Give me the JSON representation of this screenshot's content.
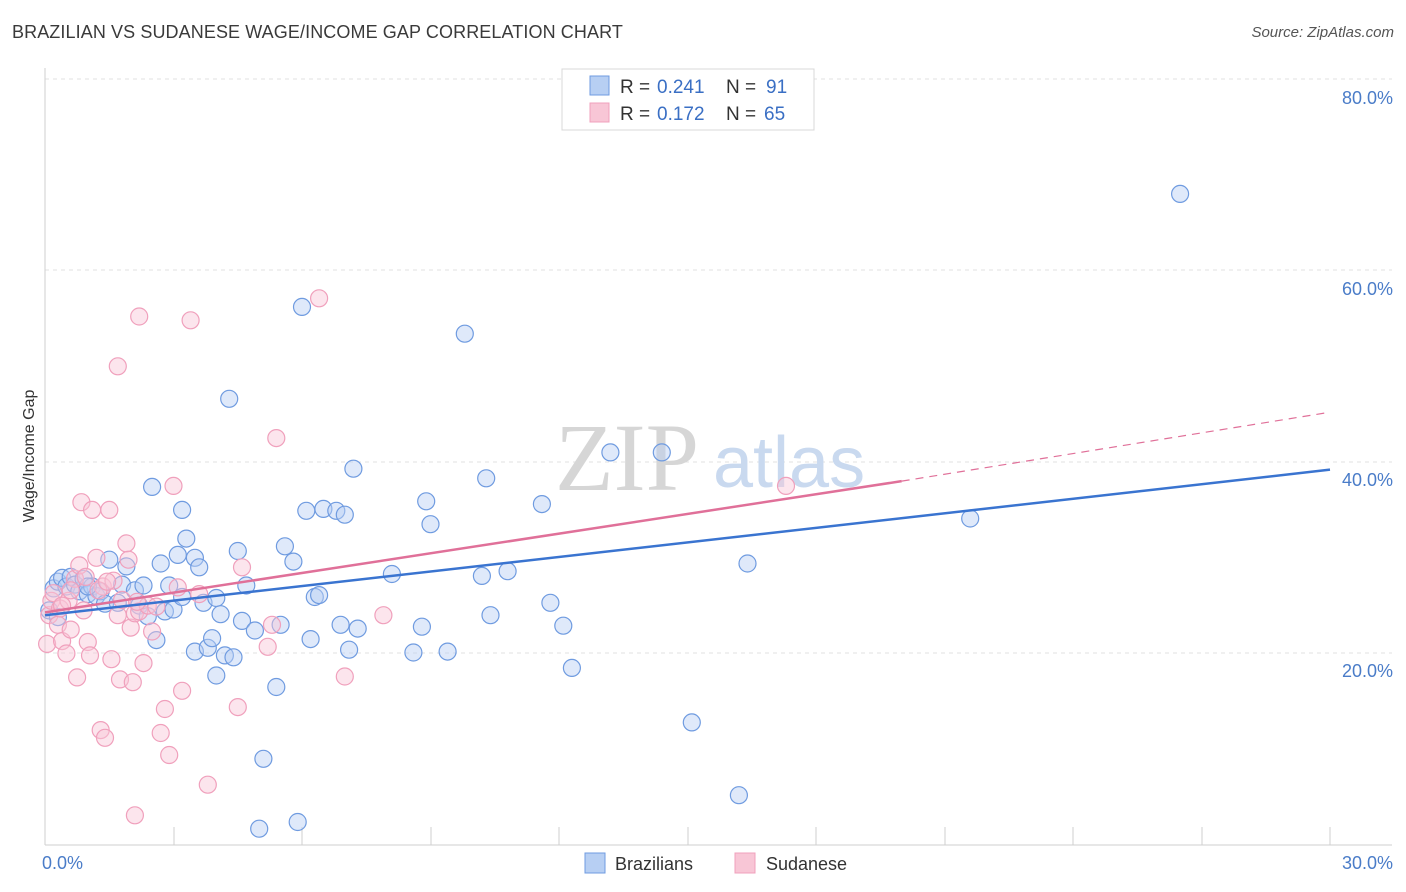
{
  "header": {
    "title": "BRAZILIAN VS SUDANESE WAGE/INCOME GAP CORRELATION CHART",
    "source": "Source: ZipAtlas.com"
  },
  "watermark": {
    "zip": "ZIP",
    "atlas": "atlas"
  },
  "legend": {
    "rows": [
      {
        "r_label": "R =",
        "r_value": "0.241",
        "n_label": "N =",
        "n_value": "91"
      },
      {
        "r_label": "R =",
        "r_value": "0.172",
        "n_label": "N =",
        "n_value": "65"
      }
    ]
  },
  "bottom_legend": {
    "series1": "Brazilians",
    "series2": "Sudanese"
  },
  "chart_data": {
    "type": "scatter",
    "title": "BRAZILIAN VS SUDANESE WAGE/INCOME GAP CORRELATION CHART",
    "xlabel": "",
    "ylabel": "Wage/Income Gap",
    "xlim": [
      0,
      30
    ],
    "ylim": [
      0,
      82
    ],
    "x_tick_labels": [
      "0.0%",
      "30.0%"
    ],
    "y_ticks": [
      20,
      40,
      60,
      80
    ],
    "y_tick_labels": [
      "20.0%",
      "40.0%",
      "60.0%",
      "80.0%"
    ],
    "colors": {
      "brazilians": "#6f9be0",
      "sudanese": "#f0a0bc",
      "brazil_line": "#3a74d0",
      "sudan_line": "#e07099"
    },
    "series": [
      {
        "name": "Brazilians",
        "R": 0.241,
        "N": 91,
        "trend": {
          "x0": 0,
          "y0": 24.0,
          "x1": 30,
          "y1": 39.2
        },
        "points": [
          [
            0.1,
            24.5
          ],
          [
            0.2,
            26.8
          ],
          [
            0.3,
            27.5
          ],
          [
            0.4,
            27.9
          ],
          [
            0.5,
            27.0
          ],
          [
            0.6,
            28.0
          ],
          [
            0.7,
            27.2
          ],
          [
            0.8,
            26.5
          ],
          [
            0.9,
            27.8
          ],
          [
            1.0,
            26.2
          ],
          [
            1.1,
            27.0
          ],
          [
            1.2,
            26.0
          ],
          [
            1.3,
            26.5
          ],
          [
            1.4,
            25.2
          ],
          [
            1.5,
            29.8
          ],
          [
            1.7,
            25.3
          ],
          [
            1.8,
            27.2
          ],
          [
            1.9,
            29.1
          ],
          [
            2.1,
            26.6
          ],
          [
            2.2,
            25.0
          ],
          [
            2.3,
            27.1
          ],
          [
            2.4,
            23.9
          ],
          [
            2.5,
            37.4
          ],
          [
            2.6,
            21.4
          ],
          [
            2.7,
            29.4
          ],
          [
            2.8,
            24.4
          ],
          [
            2.9,
            27.1
          ],
          [
            3.0,
            24.6
          ],
          [
            3.1,
            30.3
          ],
          [
            3.2,
            25.9
          ],
          [
            3.2,
            35.0
          ],
          [
            3.3,
            32.0
          ],
          [
            3.5,
            20.2
          ],
          [
            3.5,
            30.0
          ],
          [
            3.6,
            29.0
          ],
          [
            3.7,
            25.3
          ],
          [
            3.8,
            20.6
          ],
          [
            3.9,
            21.6
          ],
          [
            4.0,
            25.8
          ],
          [
            4.0,
            17.7
          ],
          [
            4.1,
            24.1
          ],
          [
            4.2,
            19.8
          ],
          [
            4.3,
            46.6
          ],
          [
            4.4,
            19.6
          ],
          [
            4.5,
            30.7
          ],
          [
            4.6,
            23.4
          ],
          [
            4.7,
            27.1
          ],
          [
            4.9,
            22.4
          ],
          [
            5.0,
            1.7
          ],
          [
            5.1,
            9.0
          ],
          [
            5.4,
            16.5
          ],
          [
            5.5,
            23.0
          ],
          [
            5.6,
            31.2
          ],
          [
            5.8,
            29.6
          ],
          [
            6.0,
            56.2
          ],
          [
            6.1,
            34.9
          ],
          [
            6.2,
            21.5
          ],
          [
            6.3,
            25.9
          ],
          [
            6.4,
            26.1
          ],
          [
            6.5,
            35.1
          ],
          [
            6.8,
            34.9
          ],
          [
            6.9,
            23.0
          ],
          [
            7.0,
            34.5
          ],
          [
            7.1,
            20.4
          ],
          [
            7.2,
            39.3
          ],
          [
            7.3,
            22.6
          ],
          [
            5.9,
            2.4
          ],
          [
            8.1,
            28.3
          ],
          [
            8.6,
            20.1
          ],
          [
            8.8,
            22.8
          ],
          [
            8.9,
            35.9
          ],
          [
            9.0,
            33.5
          ],
          [
            9.4,
            20.2
          ],
          [
            9.8,
            53.4
          ],
          [
            10.2,
            28.1
          ],
          [
            10.3,
            38.3
          ],
          [
            10.4,
            24.0
          ],
          [
            10.8,
            28.6
          ],
          [
            11.6,
            35.6
          ],
          [
            11.8,
            25.3
          ],
          [
            12.1,
            22.9
          ],
          [
            12.3,
            18.5
          ],
          [
            13.2,
            41.0
          ],
          [
            14.4,
            41.0
          ],
          [
            15.1,
            12.8
          ],
          [
            16.4,
            29.4
          ],
          [
            16.2,
            5.2
          ],
          [
            21.6,
            34.1
          ],
          [
            26.5,
            68.0
          ],
          [
            0.3,
            23.8
          ],
          [
            1.0,
            27.0
          ]
        ]
      },
      {
        "name": "Sudanese",
        "R": 0.172,
        "N": 65,
        "trend": {
          "x0": 0,
          "y0": 24.3,
          "x1": 20.0,
          "y1": 38.0
        },
        "trend_dashed": {
          "x0": 20.0,
          "y0": 38.0,
          "x1": 30.0,
          "y1": 45.2
        },
        "points": [
          [
            0.05,
            21.0
          ],
          [
            0.1,
            24.0
          ],
          [
            0.15,
            25.5
          ],
          [
            0.2,
            26.3
          ],
          [
            0.3,
            23.0
          ],
          [
            0.35,
            24.7
          ],
          [
            0.4,
            21.3
          ],
          [
            0.5,
            20.0
          ],
          [
            0.55,
            25.5
          ],
          [
            0.6,
            22.5
          ],
          [
            0.7,
            27.8
          ],
          [
            0.75,
            17.5
          ],
          [
            0.8,
            29.2
          ],
          [
            0.85,
            35.8
          ],
          [
            0.9,
            24.5
          ],
          [
            1.0,
            21.2
          ],
          [
            1.05,
            19.8
          ],
          [
            1.1,
            35.0
          ],
          [
            1.2,
            30.0
          ],
          [
            1.3,
            12.0
          ],
          [
            1.35,
            27.0
          ],
          [
            1.4,
            11.2
          ],
          [
            1.5,
            35.0
          ],
          [
            1.55,
            19.4
          ],
          [
            1.6,
            27.6
          ],
          [
            1.7,
            50.0
          ],
          [
            1.7,
            24.0
          ],
          [
            1.75,
            17.3
          ],
          [
            1.8,
            25.6
          ],
          [
            1.9,
            31.5
          ],
          [
            1.95,
            29.8
          ],
          [
            2.0,
            22.7
          ],
          [
            2.05,
            17.0
          ],
          [
            2.1,
            24.2
          ],
          [
            2.2,
            24.4
          ],
          [
            2.2,
            55.2
          ],
          [
            2.3,
            19.0
          ],
          [
            2.4,
            25.0
          ],
          [
            2.5,
            22.3
          ],
          [
            2.6,
            24.9
          ],
          [
            2.7,
            11.7
          ],
          [
            2.8,
            14.2
          ],
          [
            2.9,
            9.4
          ],
          [
            3.0,
            37.5
          ],
          [
            3.2,
            16.1
          ],
          [
            3.4,
            54.8
          ],
          [
            3.6,
            26.2
          ],
          [
            3.8,
            6.3
          ],
          [
            4.5,
            14.4
          ],
          [
            4.6,
            29.0
          ],
          [
            5.2,
            20.7
          ],
          [
            5.4,
            42.5
          ],
          [
            6.4,
            57.1
          ],
          [
            7.0,
            17.6
          ],
          [
            7.9,
            24.0
          ],
          [
            5.3,
            23.0
          ],
          [
            17.3,
            37.5
          ],
          [
            2.1,
            3.1
          ],
          [
            0.4,
            25.0
          ],
          [
            0.6,
            26.6
          ],
          [
            1.25,
            26.6
          ],
          [
            0.95,
            28.0
          ],
          [
            1.45,
            27.5
          ],
          [
            2.15,
            25.4
          ],
          [
            3.1,
            26.9
          ]
        ]
      }
    ]
  }
}
